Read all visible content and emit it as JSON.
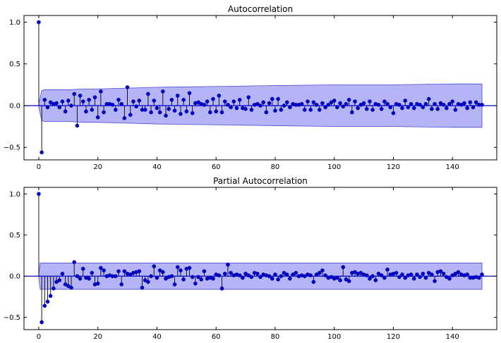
{
  "chart_data": [
    {
      "type": "stem",
      "title": "Autocorrelation",
      "xlim": [
        -5,
        155
      ],
      "ylim": [
        -0.65,
        1.08
      ],
      "xticks": [
        0,
        20,
        40,
        60,
        80,
        100,
        120,
        140
      ],
      "yticks": [
        1.0,
        0.5,
        0.0,
        -0.5
      ],
      "ytick_labels": [
        "1.0",
        "0.5",
        "0.0",
        "−0.5"
      ],
      "confidence_band": {
        "x": [
          0,
          1,
          2,
          5,
          10,
          15,
          20,
          30,
          40,
          60,
          80,
          100,
          120,
          140,
          150
        ],
        "upper": [
          0.02,
          0.18,
          0.19,
          0.19,
          0.19,
          0.2,
          0.2,
          0.21,
          0.22,
          0.23,
          0.24,
          0.25,
          0.25,
          0.26,
          0.26
        ],
        "lower": [
          -0.02,
          -0.18,
          -0.19,
          -0.19,
          -0.19,
          -0.2,
          -0.2,
          -0.21,
          -0.22,
          -0.23,
          -0.24,
          -0.25,
          -0.25,
          -0.26,
          -0.26
        ]
      },
      "lags": [
        0,
        1,
        2,
        3,
        4,
        5,
        6,
        7,
        8,
        9,
        10,
        11,
        12,
        13,
        14,
        15,
        16,
        17,
        18,
        19,
        20,
        21,
        22,
        23,
        24,
        25,
        26,
        27,
        28,
        29,
        30,
        31,
        32,
        33,
        34,
        35,
        36,
        37,
        38,
        39,
        40,
        41,
        42,
        43,
        44,
        45,
        46,
        47,
        48,
        49,
        50,
        51,
        52,
        53,
        54,
        55,
        56,
        57,
        58,
        59,
        60,
        61,
        62,
        63,
        64,
        65,
        66,
        67,
        68,
        69,
        70,
        71,
        72,
        73,
        74,
        75,
        76,
        77,
        78,
        79,
        80,
        81,
        82,
        83,
        84,
        85,
        86,
        87,
        88,
        89,
        90,
        91,
        92,
        93,
        94,
        95,
        96,
        97,
        98,
        99,
        100,
        101,
        102,
        103,
        104,
        105,
        106,
        107,
        108,
        109,
        110,
        111,
        112,
        113,
        114,
        115,
        116,
        117,
        118,
        119,
        120,
        121,
        122,
        123,
        124,
        125,
        126,
        127,
        128,
        129,
        130,
        131,
        132,
        133,
        134,
        135,
        136,
        137,
        138,
        139,
        140,
        141,
        142,
        143,
        144,
        145,
        146,
        147,
        148,
        149,
        150
      ],
      "values": [
        1.0,
        -0.56,
        0.07,
        -0.02,
        0.04,
        0.02,
        0.03,
        -0.02,
        0.05,
        -0.07,
        0.06,
        0.0,
        0.14,
        -0.24,
        0.12,
        0.05,
        -0.07,
        0.07,
        -0.05,
        0.1,
        -0.14,
        0.17,
        -0.08,
        0.02,
        0.02,
        0.01,
        -0.05,
        0.07,
        0.02,
        -0.15,
        0.22,
        -0.11,
        0.05,
        -0.01,
        0.06,
        -0.05,
        -0.05,
        0.14,
        -0.08,
        0.06,
        -0.03,
        -0.08,
        0.17,
        -0.12,
        -0.04,
        0.07,
        -0.06,
        0.12,
        -0.1,
        0.07,
        -0.07,
        0.15,
        -0.09,
        0.03,
        0.04,
        0.02,
        0.01,
        0.05,
        -0.08,
        0.08,
        -0.07,
        0.12,
        -0.08,
        0.05,
        0.01,
        -0.02,
        0.05,
        -0.03,
        0.07,
        -0.03,
        -0.04,
        0.1,
        -0.05,
        0.01,
        0.02,
        0.0,
        0.04,
        -0.08,
        0.03,
        0.08,
        -0.06,
        0.08,
        -0.05,
        0.0,
        0.04,
        -0.02,
        0.02,
        0.01,
        0.01,
        0.02,
        -0.05,
        0.05,
        -0.05,
        0.04,
        0.01,
        -0.05,
        0.03,
        -0.02,
        0.01,
        0.04,
        0.06,
        -0.02,
        0.03,
        -0.01,
        0.02,
        0.07,
        -0.08,
        0.05,
        -0.03,
        0.01,
        0.03,
        -0.04,
        0.05,
        -0.05,
        0.02,
        0.01,
        -0.04,
        0.05,
        0.02,
        -0.02,
        -0.09,
        0.02,
        0.01,
        -0.03,
        0.06,
        -0.02,
        0.02,
        -0.03,
        0.02,
        0.01,
        -0.02,
        0.02,
        0.08,
        -0.04,
        0.02,
        -0.04,
        0.03,
        0.01,
        -0.03,
        0.02,
        0.05,
        -0.05,
        0.02,
        0.01,
        0.03,
        -0.03,
        0.04,
        -0.02,
        0.04,
        0.01,
        0.01
      ]
    },
    {
      "type": "stem",
      "title": "Partial Autocorrelation",
      "xlim": [
        -5,
        155
      ],
      "ylim": [
        -0.65,
        1.08
      ],
      "xticks": [
        0,
        20,
        40,
        60,
        80,
        100,
        120,
        140
      ],
      "yticks": [
        1.0,
        0.5,
        0.0,
        -0.5
      ],
      "ytick_labels": [
        "1.0",
        "0.5",
        "0.0",
        "−0.5"
      ],
      "confidence_band": {
        "x": [
          0,
          0.5,
          150
        ],
        "upper": [
          0.02,
          0.16,
          0.16
        ],
        "lower": [
          -0.02,
          -0.16,
          -0.16
        ]
      },
      "lags": [
        0,
        1,
        2,
        3,
        4,
        5,
        6,
        7,
        8,
        9,
        10,
        11,
        12,
        13,
        14,
        15,
        16,
        17,
        18,
        19,
        20,
        21,
        22,
        23,
        24,
        25,
        26,
        27,
        28,
        29,
        30,
        31,
        32,
        33,
        34,
        35,
        36,
        37,
        38,
        39,
        40,
        41,
        42,
        43,
        44,
        45,
        46,
        47,
        48,
        49,
        50,
        51,
        52,
        53,
        54,
        55,
        56,
        57,
        58,
        59,
        60,
        61,
        62,
        63,
        64,
        65,
        66,
        67,
        68,
        69,
        70,
        71,
        72,
        73,
        74,
        75,
        76,
        77,
        78,
        79,
        80,
        81,
        82,
        83,
        84,
        85,
        86,
        87,
        88,
        89,
        90,
        91,
        92,
        93,
        94,
        95,
        96,
        97,
        98,
        99,
        100,
        101,
        102,
        103,
        104,
        105,
        106,
        107,
        108,
        109,
        110,
        111,
        112,
        113,
        114,
        115,
        116,
        117,
        118,
        119,
        120,
        121,
        122,
        123,
        124,
        125,
        126,
        127,
        128,
        129,
        130,
        131,
        132,
        133,
        134,
        135,
        136,
        137,
        138,
        139,
        140,
        141,
        142,
        143,
        144,
        145,
        146,
        147,
        148,
        149,
        150
      ],
      "values": [
        1.0,
        -0.56,
        -0.36,
        -0.31,
        -0.24,
        -0.15,
        -0.07,
        -0.05,
        0.03,
        -0.1,
        -0.12,
        -0.14,
        0.17,
        0.0,
        -0.03,
        0.09,
        -0.02,
        -0.03,
        0.04,
        -0.1,
        -0.09,
        0.1,
        0.07,
        0.0,
        0.01,
        0.0,
        0.0,
        0.06,
        -0.1,
        0.06,
        0.03,
        0.02,
        0.04,
        0.05,
        0.06,
        -0.14,
        -0.05,
        -0.07,
        0.0,
        0.12,
        -0.02,
        0.07,
        0.05,
        -0.03,
        -0.01,
        0.0,
        -0.1,
        0.11,
        0.07,
        -0.04,
        0.09,
        0.1,
        -0.01,
        -0.09,
        -0.01,
        -0.04,
        0.06,
        -0.03,
        -0.02,
        -0.03,
        0.02,
        0.01,
        -0.15,
        0.03,
        0.14,
        0.04,
        0.01,
        0.02,
        0.01,
        -0.02,
        0.03,
        0.01,
        -0.01,
        0.04,
        0.03,
        -0.01,
        0.02,
        0.01,
        0.0,
        -0.03,
        0.02,
        -0.04,
        0.0,
        0.04,
        0.02,
        -0.03,
        0.02,
        0.04,
        0.0,
        0.01,
        0.0,
        0.02,
        0.01,
        -0.07,
        0.02,
        0.04,
        0.07,
        0.01,
        -0.02,
        -0.01,
        -0.03,
        -0.02,
        -0.05,
        0.11,
        -0.04,
        -0.06,
        0.04,
        0.05,
        0.03,
        0.04,
        0.02,
        0.01,
        -0.03,
        0.0,
        -0.05,
        0.03,
        0.01,
        -0.02,
        0.08,
        0.02,
        0.03,
        0.04,
        -0.01,
        0.02,
        -0.02,
        0.01,
        0.02,
        -0.03,
        0.02,
        -0.01,
        0.03,
        -0.02,
        0.04,
        0.02,
        -0.06,
        0.05,
        0.06,
        0.03,
        -0.01,
        -0.03,
        0.01,
        0.03,
        0.05,
        0.02,
        0.01,
        0.02,
        -0.02,
        -0.02,
        -0.01,
        -0.02,
        0.02,
        0.03,
        0.03
      ]
    }
  ]
}
